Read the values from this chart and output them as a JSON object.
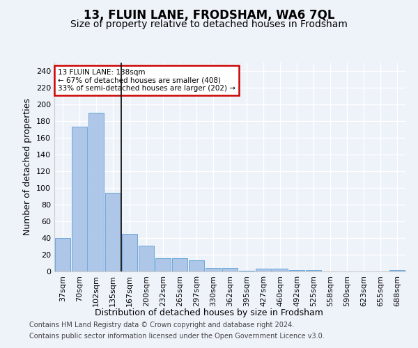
{
  "title": "13, FLUIN LANE, FRODSHAM, WA6 7QL",
  "subtitle": "Size of property relative to detached houses in Frodsham",
  "xlabel": "Distribution of detached houses by size in Frodsham",
  "ylabel": "Number of detached properties",
  "categories": [
    "37sqm",
    "70sqm",
    "102sqm",
    "135sqm",
    "167sqm",
    "200sqm",
    "232sqm",
    "265sqm",
    "297sqm",
    "330sqm",
    "362sqm",
    "395sqm",
    "427sqm",
    "460sqm",
    "492sqm",
    "525sqm",
    "558sqm",
    "590sqm",
    "623sqm",
    "655sqm",
    "688sqm"
  ],
  "values": [
    40,
    173,
    190,
    94,
    45,
    31,
    16,
    16,
    13,
    4,
    4,
    1,
    3,
    3,
    2,
    2,
    0,
    0,
    0,
    0,
    2
  ],
  "bar_color": "#aec6e8",
  "bar_edge_color": "#5a9fd4",
  "vline_index": 3.5,
  "annotation_text": "13 FLUIN LANE: 138sqm\n← 67% of detached houses are smaller (408)\n33% of semi-detached houses are larger (202) →",
  "annotation_box_color": "#ffffff",
  "annotation_box_edge_color": "#cc0000",
  "ylim": [
    0,
    250
  ],
  "yticks": [
    0,
    20,
    40,
    60,
    80,
    100,
    120,
    140,
    160,
    180,
    200,
    220,
    240
  ],
  "footer_line1": "Contains HM Land Registry data © Crown copyright and database right 2024.",
  "footer_line2": "Contains public sector information licensed under the Open Government Licence v3.0.",
  "bg_color": "#eef2f9",
  "grid_color": "#ffffff",
  "title_fontsize": 12,
  "subtitle_fontsize": 10,
  "label_fontsize": 9,
  "tick_fontsize": 8,
  "footer_fontsize": 7
}
